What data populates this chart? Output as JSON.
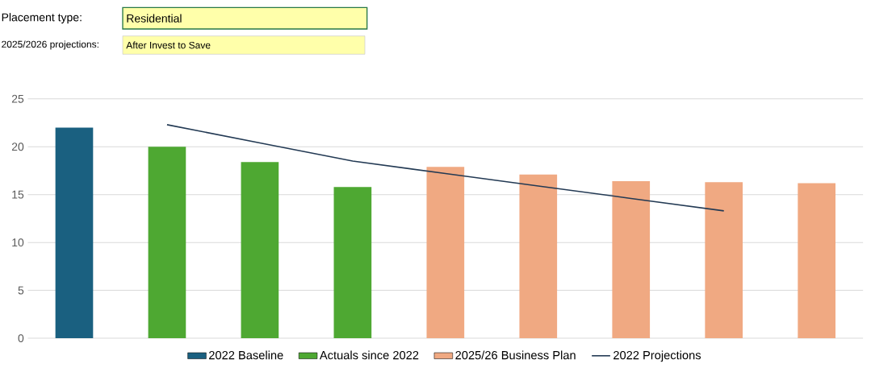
{
  "chart_data": {
    "type": "bar",
    "annotations": [
      "Placement type:",
      "Residential",
      "2025/2026 projections:",
      "After Invest to Save"
    ],
    "categories": [
      null,
      null,
      null,
      null,
      null,
      null,
      null,
      null,
      null
    ],
    "series": [
      {
        "name": "2022 Baseline",
        "color": "#1a6080",
        "values": [
          22.0,
          null,
          null,
          null,
          null,
          null,
          null,
          null,
          null
        ]
      },
      {
        "name": "Actuals since 2022",
        "color": "#4ea832",
        "values": [
          null,
          20.0,
          18.4,
          15.8,
          null,
          null,
          null,
          null,
          null
        ]
      },
      {
        "name": "2025/26 Business Plan",
        "color": "#f0a982",
        "values": [
          null,
          null,
          null,
          null,
          17.9,
          17.1,
          16.4,
          16.3,
          16.2
        ]
      },
      {
        "name": "2022 Projections",
        "type": "line",
        "color": "#233a54",
        "values": [
          null,
          22.3,
          20.4,
          18.5,
          17.2,
          15.9,
          14.6,
          13.3,
          null
        ]
      }
    ],
    "ylim": [
      0,
      25
    ],
    "yticks": [
      0,
      5,
      10,
      15,
      20,
      25
    ],
    "grid": "y",
    "legend": "bottom",
    "tick_labels": "y"
  }
}
